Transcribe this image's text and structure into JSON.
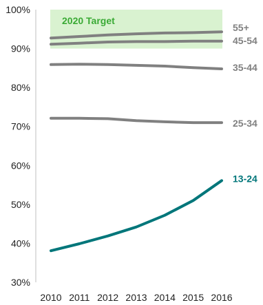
{
  "chart_data": {
    "type": "line",
    "x": [
      "2010",
      "2011",
      "2012",
      "2013",
      "2014",
      "2015",
      "2016"
    ],
    "ylim": [
      30,
      100
    ],
    "yticks": [
      "30%",
      "40%",
      "50%",
      "60%",
      "70%",
      "80%",
      "90%",
      "100%"
    ],
    "ytick_values": [
      30,
      40,
      50,
      60,
      70,
      80,
      90,
      100
    ],
    "grid": false,
    "target_band": {
      "label": "2020 Target",
      "from": 90,
      "to": 100,
      "fill_color": "#d9f2d0",
      "text_color": "#3aaa35"
    },
    "series": [
      {
        "name": "55+",
        "values": [
          92.7,
          93.1,
          93.5,
          93.8,
          94.0,
          94.1,
          94.3
        ],
        "color": "#808080"
      },
      {
        "name": "45-54",
        "values": [
          91.1,
          91.4,
          91.7,
          91.8,
          91.8,
          91.9,
          91.9
        ],
        "color": "#808080"
      },
      {
        "name": "35-44",
        "values": [
          85.9,
          86.0,
          85.9,
          85.7,
          85.5,
          85.1,
          84.8
        ],
        "color": "#808080"
      },
      {
        "name": "25-34",
        "values": [
          72.1,
          72.1,
          72.0,
          71.5,
          71.2,
          71.0,
          71.0
        ],
        "color": "#808080"
      },
      {
        "name": "13-24",
        "values": [
          38.1,
          39.9,
          41.9,
          44.2,
          47.2,
          51.0,
          56.1
        ],
        "color": "#00767a"
      }
    ]
  }
}
